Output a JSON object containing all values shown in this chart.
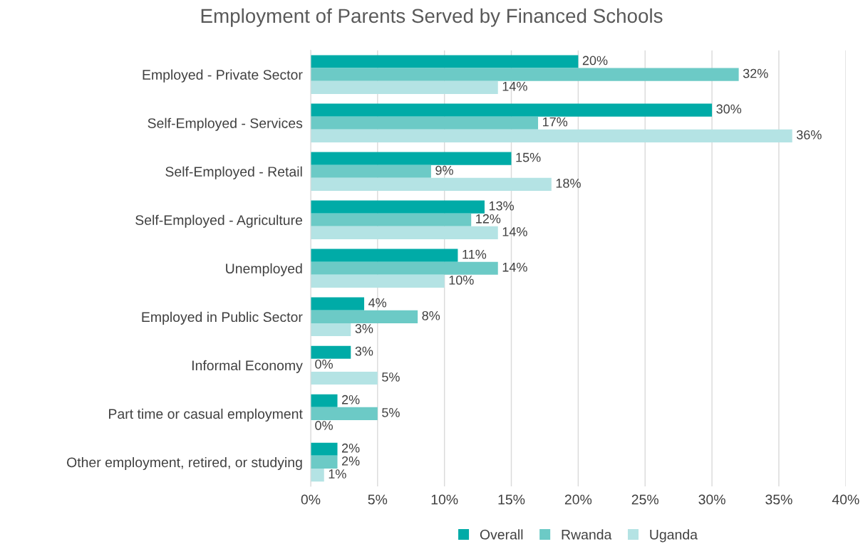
{
  "chart_data": {
    "type": "bar",
    "orientation": "horizontal",
    "title": "Employment of Parents Served by Financed Schools",
    "categories": [
      "Employed - Private Sector",
      "Self-Employed - Services",
      "Self-Employed - Retail",
      "Self-Employed - Agriculture",
      "Unemployed",
      "Employed in Public Sector",
      "Informal Economy",
      "Part time or casual employment",
      "Other employment, retired, or studying"
    ],
    "series": [
      {
        "name": "Overall",
        "color": "#00aba7",
        "values": [
          20,
          30,
          15,
          13,
          11,
          4,
          3,
          2,
          2
        ],
        "value_labels": [
          "20%",
          "30%",
          "15%",
          "13%",
          "11%",
          "4%",
          "3%",
          "2%",
          "2%"
        ]
      },
      {
        "name": "Rwanda",
        "color": "#6ccac6",
        "values": [
          32,
          17,
          9,
          12,
          14,
          8,
          0,
          5,
          2
        ],
        "value_labels": [
          "32%",
          "17%",
          "9%",
          "12%",
          "14%",
          "8%",
          "0%",
          "5%",
          "2%"
        ]
      },
      {
        "name": "Uganda",
        "color": "#b4e3e4",
        "values": [
          14,
          36,
          18,
          14,
          10,
          3,
          5,
          0,
          1
        ],
        "value_labels": [
          "14%",
          "36%",
          "18%",
          "14%",
          "10%",
          "3%",
          "5%",
          "0%",
          "1%"
        ]
      }
    ],
    "xlim": [
      0,
      40
    ],
    "xticks": [
      {
        "value": 0,
        "label": "0%"
      },
      {
        "value": 5,
        "label": "5%"
      },
      {
        "value": 10,
        "label": "10%"
      },
      {
        "value": 15,
        "label": "15%"
      },
      {
        "value": 20,
        "label": "20%"
      },
      {
        "value": 25,
        "label": "25%"
      },
      {
        "value": 30,
        "label": "30%"
      },
      {
        "value": 35,
        "label": "35%"
      },
      {
        "value": 40,
        "label": "40%"
      }
    ],
    "grid": "x",
    "legend": "bottom"
  }
}
